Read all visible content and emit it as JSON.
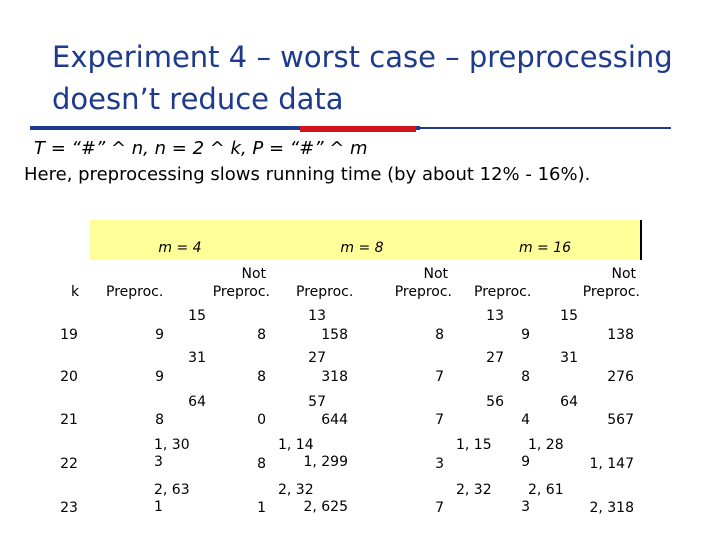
{
  "title": "Experiment 4 – worst case – preprocessing doesn’t reduce data",
  "line1": "T = “#” ^ n, n = 2 ^ k, P = “#” ^ m",
  "line2": "Here, preprocessing slows running time (by about 12% - 16%).",
  "groups": [
    "m = 4",
    "m = 8",
    "m = 16"
  ],
  "col_k": "k",
  "col_pre": "Preproc.",
  "col_not_1": "Not",
  "col_not_2": "Preproc.",
  "rows": [
    {
      "k": "19",
      "m4a": "15",
      "m4b": "9",
      "m4c": "8",
      "m8a": "13",
      "m8b": "158",
      "m8c": "8",
      "m16a": "13",
      "m16b": "9",
      "m16c": "15",
      "m16d": "138"
    },
    {
      "k": "20",
      "m4a": "31",
      "m4b": "9",
      "m4c": "8",
      "m8a": "27",
      "m8b": "318",
      "m8c": "7",
      "m16a": "27",
      "m16b": "8",
      "m16c": "31",
      "m16d": "276"
    },
    {
      "k": "21",
      "m4a": "64",
      "m4b": "8",
      "m4c": "0",
      "m8a": "57",
      "m8b": "644",
      "m8c": "7",
      "m16a": "56",
      "m16b": "4",
      "m16c": "64",
      "m16d": "567"
    },
    {
      "k": "22",
      "m4a": "1, 30",
      "m4b": "3",
      "m4c": "8",
      "m8a": "1, 14",
      "m8b": "1, 299",
      "m8c": "3",
      "m16a": "1, 15",
      "m16b": "9",
      "m16c": "1, 28",
      "m16d": "1, 147"
    },
    {
      "k": "23",
      "m4a": "2, 63",
      "m4b": "1",
      "m4c": "1",
      "m8a": "2, 32",
      "m8b": "2, 625",
      "m8c": "7",
      "m16a": "2, 32",
      "m16b": "3",
      "m16c": "2, 61",
      "m16d": "2, 318"
    }
  ]
}
